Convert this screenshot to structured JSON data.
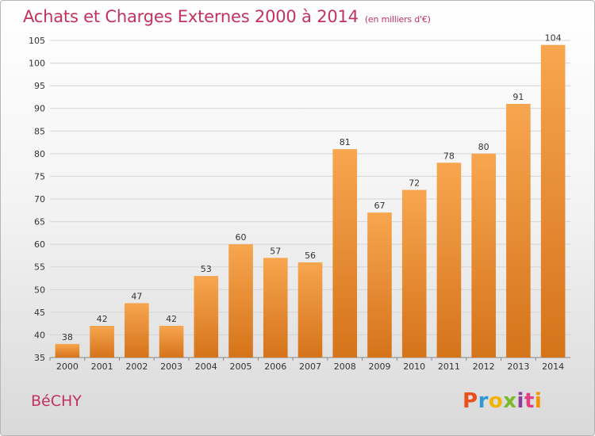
{
  "header": {
    "title": "Achats et Charges Externes 2000 à 2014",
    "subtitle": "(en milliers d'€)"
  },
  "footer": {
    "place": "BéCHY",
    "logo": "Proxiti",
    "logo_colors": [
      "#e94e1b",
      "#2d9ad6",
      "#f2b400",
      "#7ab929",
      "#8b3f98",
      "#e53d86",
      "#f39200"
    ]
  },
  "colors": {
    "bar_top": "#f7a64f",
    "bar_bottom": "#d5731a",
    "text": "#c3325f"
  },
  "chart_data": {
    "type": "bar",
    "title": "Achats et Charges Externes 2000 à 2014",
    "subtitle": "(en milliers d'€)",
    "categories": [
      "2000",
      "2001",
      "2002",
      "2003",
      "2004",
      "2005",
      "2006",
      "2007",
      "2008",
      "2009",
      "2010",
      "2011",
      "2012",
      "2013",
      "2014"
    ],
    "values": [
      38,
      42,
      47,
      42,
      53,
      60,
      57,
      56,
      81,
      67,
      72,
      78,
      80,
      91,
      104
    ],
    "ylim": [
      35,
      105
    ],
    "yticks": [
      35,
      40,
      45,
      50,
      55,
      60,
      65,
      70,
      75,
      80,
      85,
      90,
      95,
      100,
      105
    ],
    "grid": true,
    "xlabel": "",
    "ylabel": ""
  }
}
